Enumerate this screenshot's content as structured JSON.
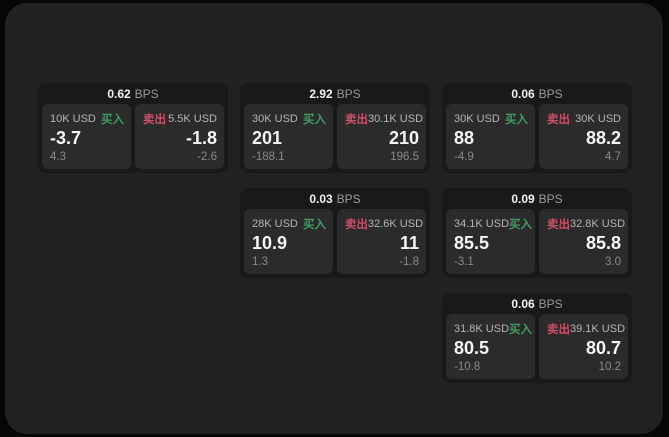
{
  "labels": {
    "bps_unit": "BPS",
    "buy": "买入",
    "sell": "卖出"
  },
  "colors": {
    "page_bg": "#060606",
    "window_bg": "#212121",
    "card_bg": "#191919",
    "panel_bg": "#2b2b2b",
    "buy_green": "#3f9e60",
    "sell_red": "#cc4f66",
    "value_white": "#f5f5f5",
    "muted_grey": "#9a9a9a"
  },
  "cards": [
    {
      "column": 0,
      "bps": "0.62",
      "buy": {
        "amount": "10K USD",
        "label": "买入",
        "price": "-3.7",
        "delta": "4.3"
      },
      "sell": {
        "label": "卖出",
        "amount": "5.5K USD",
        "price": "-1.8",
        "delta": "-2.6"
      }
    },
    {
      "column": 1,
      "bps": "2.92",
      "buy": {
        "amount": "30K USD",
        "label": "买入",
        "price": "201",
        "delta": "-188.1"
      },
      "sell": {
        "label": "卖出",
        "amount": "30.1K USD",
        "price": "210",
        "delta": "196.5"
      }
    },
    {
      "column": 1,
      "bps": "0.03",
      "buy": {
        "amount": "28K USD",
        "label": "买入",
        "price": "10.9",
        "delta": "1.3"
      },
      "sell": {
        "label": "卖出",
        "amount": "32.6K USD",
        "price": "11",
        "delta": "-1.8"
      }
    },
    {
      "column": 2,
      "bps": "0.06",
      "buy": {
        "amount": "30K USD",
        "label": "买入",
        "price": "88",
        "delta": "-4.9"
      },
      "sell": {
        "label": "卖出",
        "amount": "30K USD",
        "price": "88.2",
        "delta": "4.7"
      }
    },
    {
      "column": 2,
      "bps": "0.09",
      "buy": {
        "amount": "34.1K USD",
        "label": "买入",
        "price": "85.5",
        "delta": "-3.1"
      },
      "sell": {
        "label": "卖出",
        "amount": "32.8K USD",
        "price": "85.8",
        "delta": "3.0"
      }
    },
    {
      "column": 2,
      "bps": "0.06",
      "buy": {
        "amount": "31.8K USD",
        "label": "买入",
        "price": "80.5",
        "delta": "-10.8"
      },
      "sell": {
        "label": "卖出",
        "amount": "39.1K USD",
        "price": "80.7",
        "delta": "10.2"
      }
    }
  ]
}
